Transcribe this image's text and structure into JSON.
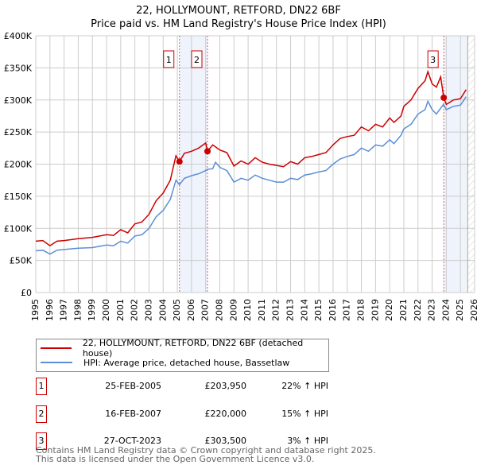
{
  "title": "22, HOLLYMOUNT, RETFORD, DN22 6BF",
  "subtitle": "Price paid vs. HM Land Registry's House Price Index (HPI)",
  "chart_data": {
    "type": "line",
    "ylim": [
      0,
      400000
    ],
    "xlim": [
      1995,
      2026
    ],
    "yticks": [
      {
        "v": 0,
        "label": "£0"
      },
      {
        "v": 50000,
        "label": "£50K"
      },
      {
        "v": 100000,
        "label": "£100K"
      },
      {
        "v": 150000,
        "label": "£150K"
      },
      {
        "v": 200000,
        "label": "£200K"
      },
      {
        "v": 250000,
        "label": "£250K"
      },
      {
        "v": 300000,
        "label": "£300K"
      },
      {
        "v": 350000,
        "label": "£350K"
      },
      {
        "v": 400000,
        "label": "£400K"
      }
    ],
    "xticks": [
      "1995",
      "1996",
      "1997",
      "1998",
      "1999",
      "2000",
      "2001",
      "2002",
      "2003",
      "2004",
      "2005",
      "2006",
      "2007",
      "2008",
      "2009",
      "2010",
      "2011",
      "2012",
      "2013",
      "2014",
      "2015",
      "2016",
      "2017",
      "2018",
      "2019",
      "2020",
      "2021",
      "2022",
      "2023",
      "2024",
      "2025",
      "2026"
    ],
    "series": [
      {
        "name": "22, HOLLYMOUNT, RETFORD, DN22 6BF (detached house)",
        "color": "#cc0000",
        "x": [
          1995,
          1995.5,
          1996,
          1996.5,
          1997,
          1998,
          1999,
          2000,
          2000.5,
          2001,
          2001.5,
          2002,
          2002.5,
          2003,
          2003.5,
          2004,
          2004.5,
          2004.9,
          2005.15,
          2005.5,
          2006,
          2006.5,
          2007.0,
          2007.13,
          2007.5,
          2008,
          2008.5,
          2009,
          2009.5,
          2010,
          2010.5,
          2011,
          2011.5,
          2012,
          2012.5,
          2013,
          2013.5,
          2014,
          2014.5,
          2015,
          2015.5,
          2016,
          2016.5,
          2017,
          2017.5,
          2018,
          2018.5,
          2019,
          2019.5,
          2020,
          2020.3,
          2020.8,
          2021,
          2021.5,
          2022,
          2022.5,
          2022.7,
          2023,
          2023.3,
          2023.6,
          2023.82,
          2024,
          2024.5,
          2025,
          2025.4
        ],
        "y": [
          80,
          81,
          73,
          80,
          81,
          84,
          86,
          90,
          89,
          98,
          93,
          107,
          110,
          122,
          143,
          155,
          175,
          213,
          204,
          217,
          220,
          225,
          233,
          220,
          230,
          222,
          218,
          197,
          205,
          200,
          210,
          203,
          200,
          198,
          196,
          204,
          200,
          210,
          212,
          215,
          218,
          230,
          240,
          243,
          245,
          258,
          252,
          262,
          258,
          272,
          265,
          275,
          290,
          300,
          318,
          330,
          344,
          325,
          320,
          336,
          303.5,
          293,
          300,
          302,
          316
        ]
      },
      {
        "name": "HPI: Average price, detached house, Bassetlaw",
        "color": "#5b8fd4",
        "x": [
          1995,
          1995.5,
          1996,
          1996.5,
          1997,
          1998,
          1999,
          2000,
          2000.5,
          2001,
          2001.5,
          2002,
          2002.5,
          2003,
          2003.5,
          2004,
          2004.5,
          2004.9,
          2005.15,
          2005.5,
          2006,
          2006.5,
          2007.0,
          2007.13,
          2007.5,
          2007.7,
          2008,
          2008.5,
          2009,
          2009.5,
          2010,
          2010.5,
          2011,
          2011.5,
          2012,
          2012.5,
          2013,
          2013.5,
          2014,
          2014.5,
          2015,
          2015.5,
          2016,
          2016.5,
          2017,
          2017.5,
          2018,
          2018.5,
          2019,
          2019.5,
          2020,
          2020.3,
          2020.8,
          2021,
          2021.5,
          2022,
          2022.5,
          2022.7,
          2023,
          2023.3,
          2023.8,
          2024,
          2024.5,
          2025,
          2025.4
        ],
        "y": [
          65,
          66,
          60,
          66,
          67,
          69,
          70,
          74,
          73,
          80,
          77,
          88,
          90,
          100,
          118,
          128,
          145,
          175,
          168,
          178,
          182,
          185,
          190,
          192,
          193,
          203,
          195,
          190,
          172,
          178,
          175,
          183,
          178,
          175,
          172,
          172,
          178,
          176,
          183,
          185,
          188,
          190,
          200,
          208,
          212,
          215,
          225,
          220,
          230,
          228,
          238,
          232,
          245,
          255,
          262,
          278,
          285,
          298,
          285,
          278,
          293,
          285,
          290,
          292,
          305
        ]
      }
    ],
    "sales": [
      {
        "label": "1",
        "x": 2005.15,
        "y": 203950
      },
      {
        "label": "2",
        "x": 2007.13,
        "y": 220000
      },
      {
        "label": "3",
        "x": 2023.82,
        "y": 303500
      }
    ],
    "shaded_ranges": [
      [
        2005.15,
        2007.13
      ],
      [
        2023.82,
        2025.4
      ]
    ],
    "forecast_from": 2025.5,
    "grid": true
  },
  "legend": [
    {
      "label": "22, HOLLYMOUNT, RETFORD, DN22 6BF (detached house)",
      "color": "#cc0000"
    },
    {
      "label": "HPI: Average price, detached house, Bassetlaw",
      "color": "#5b8fd4"
    }
  ],
  "transactions": [
    {
      "num": "1",
      "date": "25-FEB-2005",
      "price": "£203,950",
      "hpi": "22% ↑ HPI"
    },
    {
      "num": "2",
      "date": "16-FEB-2007",
      "price": "£220,000",
      "hpi": "15% ↑ HPI"
    },
    {
      "num": "3",
      "date": "27-OCT-2023",
      "price": "£303,500",
      "hpi": "3% ↑ HPI"
    }
  ],
  "footer": [
    "Contains HM Land Registry data © Crown copyright and database right 2025.",
    "This data is licensed under the Open Government Licence v3.0."
  ]
}
